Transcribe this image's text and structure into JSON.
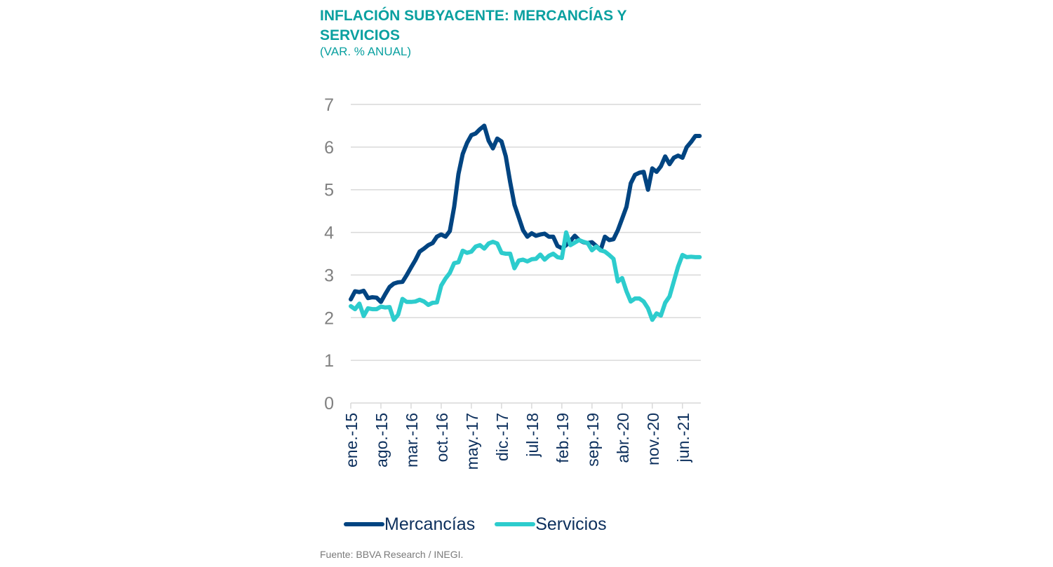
{
  "header": {
    "title": "INFLACIÓN SUBYACENTE: MERCANCÍAS Y SERVICIOS",
    "subtitle": "(VAR. % ANUAL)"
  },
  "footer": {
    "source": "Fuente: BBVA Research / INEGI."
  },
  "colors": {
    "title": "#0aa0a0",
    "mercancias": "#004481",
    "servicios": "#2dcccd",
    "grid": "#d9d9d9",
    "tick_text": "#808080",
    "xlabel_text": "#0c2f5c"
  },
  "chart_data": {
    "type": "line",
    "title": "INFLACIÓN SUBYACENTE: MERCANCÍAS Y SERVICIOS",
    "subtitle": "(VAR. % ANUAL)",
    "xlabel": "",
    "ylabel": "",
    "ylim": [
      0,
      7
    ],
    "yticks": [
      0,
      1,
      2,
      3,
      4,
      5,
      6,
      7
    ],
    "grid": true,
    "legend_position": "bottom",
    "x_start": "ene.-15",
    "x_end": "oct.-21",
    "x_frequency": "monthly",
    "x_tick_labels": [
      "ene.-15",
      "ago.-15",
      "mar.-16",
      "oct.-16",
      "may.-17",
      "dic.-17",
      "jul.-18",
      "feb.-19",
      "sep.-19",
      "abr.-20",
      "nov.-20",
      "jun.-21"
    ],
    "x_tick_every_months": 7,
    "series": [
      {
        "name": "Mercancías",
        "color": "#004481",
        "values": [
          2.43,
          2.62,
          2.6,
          2.63,
          2.46,
          2.48,
          2.47,
          2.37,
          2.55,
          2.72,
          2.8,
          2.83,
          2.84,
          3.0,
          3.18,
          3.35,
          3.55,
          3.62,
          3.7,
          3.75,
          3.9,
          3.95,
          3.9,
          4.03,
          4.6,
          5.37,
          5.84,
          6.1,
          6.28,
          6.32,
          6.42,
          6.5,
          6.15,
          5.97,
          6.2,
          6.13,
          5.78,
          5.18,
          4.65,
          4.35,
          4.05,
          3.9,
          3.98,
          3.92,
          3.95,
          3.97,
          3.9,
          3.9,
          3.68,
          3.63,
          3.7,
          3.8,
          3.92,
          3.82,
          3.77,
          3.75,
          3.77,
          3.68,
          3.58,
          3.9,
          3.82,
          3.84,
          4.05,
          4.32,
          4.6,
          5.15,
          5.35,
          5.4,
          5.42,
          5.0,
          5.5,
          5.42,
          5.55,
          5.78,
          5.6,
          5.75,
          5.8,
          5.75,
          6.0,
          6.12,
          6.26,
          6.26
        ]
      },
      {
        "name": "Servicios",
        "color": "#2dcccd",
        "values": [
          2.27,
          2.2,
          2.33,
          2.04,
          2.22,
          2.2,
          2.2,
          2.26,
          2.24,
          2.25,
          1.95,
          2.07,
          2.44,
          2.37,
          2.37,
          2.38,
          2.42,
          2.38,
          2.3,
          2.35,
          2.36,
          2.75,
          2.92,
          3.05,
          3.28,
          3.3,
          3.57,
          3.52,
          3.55,
          3.67,
          3.7,
          3.62,
          3.74,
          3.78,
          3.74,
          3.52,
          3.5,
          3.5,
          3.16,
          3.34,
          3.36,
          3.32,
          3.37,
          3.38,
          3.48,
          3.36,
          3.45,
          3.5,
          3.42,
          3.4,
          4.0,
          3.7,
          3.76,
          3.82,
          3.78,
          3.75,
          3.58,
          3.67,
          3.58,
          3.55,
          3.47,
          3.38,
          2.85,
          2.93,
          2.62,
          2.38,
          2.45,
          2.45,
          2.38,
          2.22,
          1.95,
          2.1,
          2.05,
          2.35,
          2.5,
          2.85,
          3.2,
          3.47,
          3.42,
          3.43,
          3.42,
          3.42
        ]
      }
    ]
  }
}
